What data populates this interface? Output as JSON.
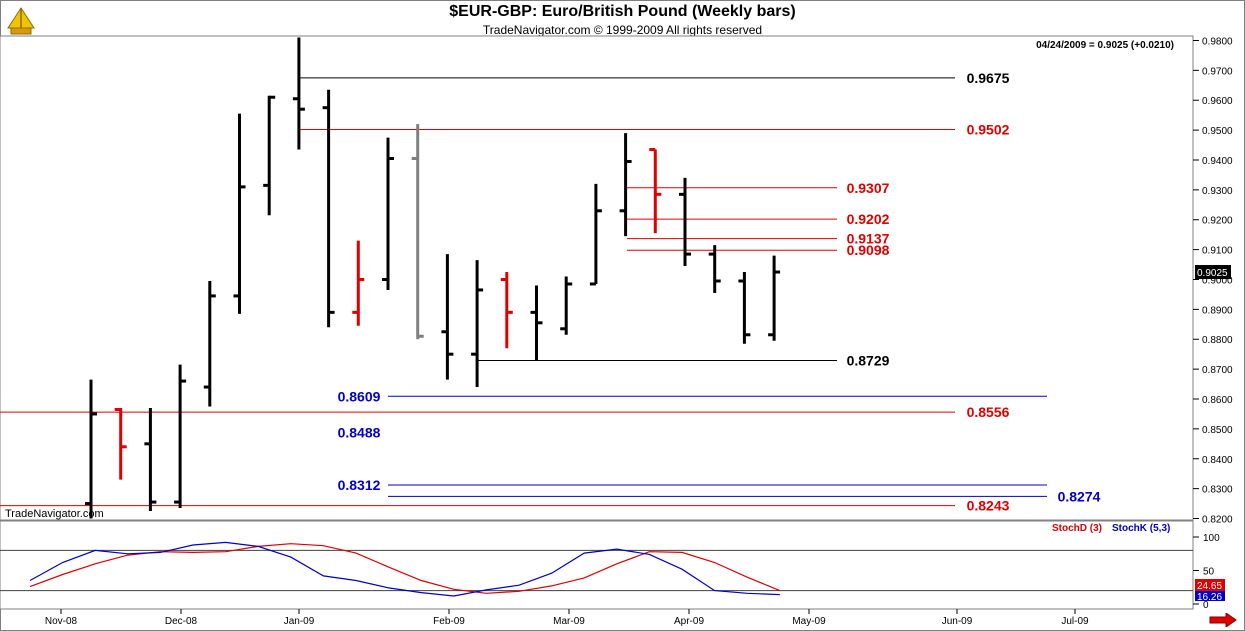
{
  "header": {
    "title": "$EUR-GBP:  Euro/British Pound  (Weekly bars)",
    "subtitle": "TradeNavigator.com © 1999-2009 All rights reserved",
    "quote": "04/24/2009 = 0.9025 (+0.0210)",
    "watermark": "TradeNavigator.com"
  },
  "colors": {
    "up": "#000000",
    "down": "#e00000",
    "gray": "#808080",
    "blue": "#0000cc",
    "red": "#e00000"
  },
  "chart_data": [
    {
      "type": "ohlc",
      "title": "$EUR-GBP:  Euro/British Pound  (Weekly bars)",
      "x_tick_labels": [
        "Nov-08",
        "Dec-08",
        "Jan-09",
        "Feb-09",
        "Mar-09",
        "Apr-09",
        "May-09",
        "Jun-09",
        "Jul-09"
      ],
      "y_tick_labels": [
        "0.9800",
        "0.9700",
        "0.9600",
        "0.9500",
        "0.9400",
        "0.9300",
        "0.9200",
        "0.9100",
        "0.9000",
        "0.8900",
        "0.8800",
        "0.8700",
        "0.8600",
        "0.8500",
        "0.8400",
        "0.8300",
        "0.8200"
      ],
      "ylim": [
        0.8195,
        0.9815
      ],
      "last_price_label": "0.9025",
      "bars": [
        {
          "o": 0.825,
          "h": 0.8665,
          "l": 0.82,
          "c": 0.855,
          "color": "black"
        },
        {
          "o": 0.8565,
          "h": 0.857,
          "l": 0.833,
          "c": 0.844,
          "color": "red"
        },
        {
          "o": 0.845,
          "h": 0.857,
          "l": 0.8225,
          "c": 0.8255,
          "color": "black"
        },
        {
          "o": 0.8255,
          "h": 0.8715,
          "l": 0.8235,
          "c": 0.866,
          "color": "black"
        },
        {
          "o": 0.864,
          "h": 0.8995,
          "l": 0.8575,
          "c": 0.8945,
          "color": "black"
        },
        {
          "o": 0.8945,
          "h": 0.9555,
          "l": 0.8885,
          "c": 0.931,
          "color": "black"
        },
        {
          "o": 0.9315,
          "h": 0.9615,
          "l": 0.9215,
          "c": 0.961,
          "color": "black"
        },
        {
          "o": 0.9605,
          "h": 0.981,
          "l": 0.9435,
          "c": 0.957,
          "color": "black"
        },
        {
          "o": 0.9575,
          "h": 0.9635,
          "l": 0.884,
          "c": 0.889,
          "color": "black"
        },
        {
          "o": 0.889,
          "h": 0.913,
          "l": 0.8845,
          "c": 0.9,
          "color": "red"
        },
        {
          "o": 0.9,
          "h": 0.9475,
          "l": 0.8965,
          "c": 0.9405,
          "color": "black"
        },
        {
          "o": 0.9405,
          "h": 0.952,
          "l": 0.88,
          "c": 0.881,
          "color": "gray"
        },
        {
          "o": 0.8825,
          "h": 0.9085,
          "l": 0.8665,
          "c": 0.875,
          "color": "black"
        },
        {
          "o": 0.875,
          "h": 0.9065,
          "l": 0.864,
          "c": 0.8965,
          "color": "black"
        },
        {
          "o": 0.9,
          "h": 0.9025,
          "l": 0.877,
          "c": 0.889,
          "color": "red"
        },
        {
          "o": 0.889,
          "h": 0.898,
          "l": 0.873,
          "c": 0.8855,
          "color": "black"
        },
        {
          "o": 0.8835,
          "h": 0.901,
          "l": 0.8815,
          "c": 0.8985,
          "color": "black"
        },
        {
          "o": 0.8985,
          "h": 0.932,
          "l": 0.8985,
          "c": 0.923,
          "color": "black"
        },
        {
          "o": 0.923,
          "h": 0.949,
          "l": 0.9145,
          "c": 0.9395,
          "color": "black"
        },
        {
          "o": 0.9435,
          "h": 0.9435,
          "l": 0.9155,
          "c": 0.9285,
          "color": "red"
        },
        {
          "o": 0.9285,
          "h": 0.934,
          "l": 0.9045,
          "c": 0.9085,
          "color": "black"
        },
        {
          "o": 0.9085,
          "h": 0.9115,
          "l": 0.8955,
          "c": 0.8995,
          "color": "black"
        },
        {
          "o": 0.8995,
          "h": 0.9025,
          "l": 0.8785,
          "c": 0.8815,
          "color": "black"
        },
        {
          "o": 0.8815,
          "h": 0.908,
          "l": 0.8795,
          "c": 0.9025,
          "color": "black"
        }
      ],
      "levels": [
        {
          "value": 0.9675,
          "label": "0.9675",
          "color": "black"
        },
        {
          "value": 0.9502,
          "label": "0.9502",
          "color": "red"
        },
        {
          "value": 0.9307,
          "label": "0.9307",
          "color": "red"
        },
        {
          "value": 0.9202,
          "label": "0.9202",
          "color": "red"
        },
        {
          "value": 0.9137,
          "label": "0.9137",
          "color": "red"
        },
        {
          "value": 0.9098,
          "label": "0.9098",
          "color": "red"
        },
        {
          "value": 0.8729,
          "label": "0.8729",
          "color": "black"
        },
        {
          "value": 0.8609,
          "label": "0.8609",
          "color": "blue"
        },
        {
          "value": 0.8556,
          "label": "0.8556",
          "color": "red"
        },
        {
          "value": 0.8488,
          "label": "0.8488",
          "color": "blue"
        },
        {
          "value": 0.8312,
          "label": "0.8312",
          "color": "blue"
        },
        {
          "value": 0.8274,
          "label": "0.8274",
          "color": "blue"
        },
        {
          "value": 0.8243,
          "label": "0.8243",
          "color": "red"
        }
      ]
    },
    {
      "type": "line",
      "series": [
        {
          "name": "StochD (3)",
          "color": "red",
          "values": [
            26,
            44,
            60,
            73,
            78,
            77,
            78,
            86,
            90,
            87,
            76,
            55,
            35,
            22,
            16,
            19,
            27,
            39,
            60,
            78,
            77,
            62,
            40,
            20
          ]
        },
        {
          "name": "StochK (5,3)",
          "color": "blue",
          "values": [
            35,
            62,
            80,
            75,
            77,
            88,
            92,
            86,
            70,
            42,
            35,
            24,
            17,
            12,
            21,
            28,
            46,
            76,
            82,
            74,
            52,
            20,
            16,
            14
          ]
        }
      ],
      "y_tick_labels": [
        "100",
        "50",
        "0"
      ],
      "ylim": [
        0,
        100
      ],
      "reference_lines": [
        80,
        20
      ],
      "last_values": [
        "24.65",
        "16.26"
      ]
    }
  ]
}
